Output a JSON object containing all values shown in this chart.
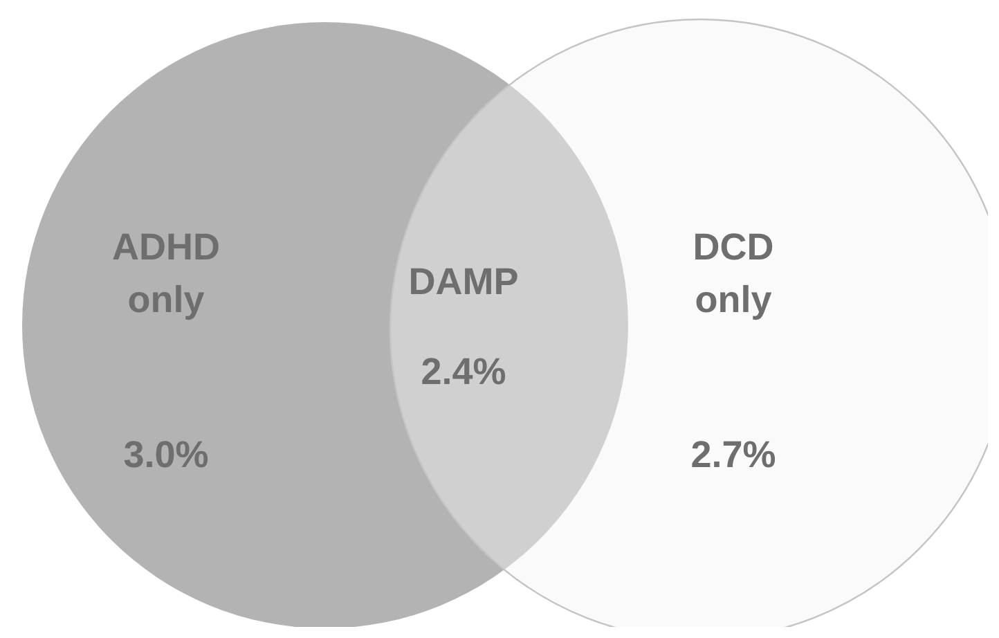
{
  "chart_data": {
    "type": "other",
    "categories": [
      "ADHD only",
      "DAMP",
      "DCD only"
    ],
    "values": [
      3.0,
      2.4,
      2.7
    ],
    "value_labels": [
      "3.0%",
      "2.4%",
      "2.7%"
    ]
  }
}
